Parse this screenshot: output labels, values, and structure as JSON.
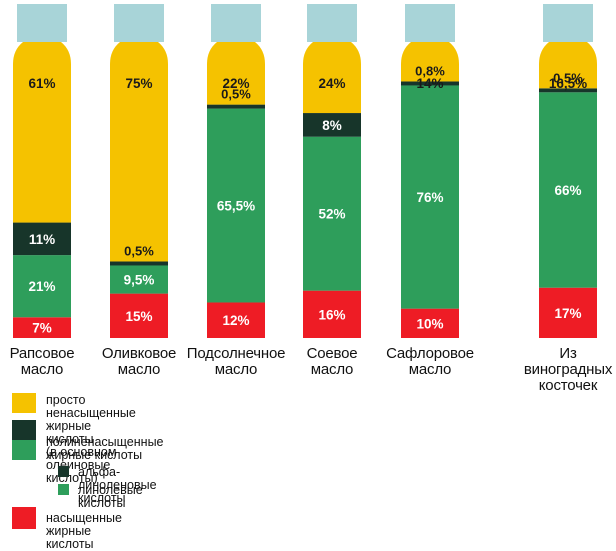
{
  "chart_data": {
    "type": "bar",
    "stacked": true,
    "orientation": "vertical",
    "categories": [
      "Рапсовое масло",
      "Оливковое масло",
      "Подсолнечное масло",
      "Соевое масло",
      "Сафлоровое масло",
      "Из виноградных косточек"
    ],
    "category_lines": [
      [
        "Рапсовое",
        "масло"
      ],
      [
        "Оливковое",
        "масло"
      ],
      [
        "Подсолнечное",
        "масло"
      ],
      [
        "Соевое",
        "масло"
      ],
      [
        "Сафлоровое",
        "масло"
      ],
      [
        "Из",
        "виноградных",
        "косточек"
      ]
    ],
    "series": [
      {
        "name": "насыщенные жирные кислоты",
        "color": "#ee1c25",
        "values": [
          7,
          15,
          12,
          16,
          10,
          17
        ],
        "labels": [
          "7%",
          "15%",
          "12%",
          "16%",
          "10%",
          "17%"
        ]
      },
      {
        "name": "линолевые кислоты",
        "color": "#2e9e5b",
        "values": [
          21,
          9.5,
          65.5,
          52,
          76,
          66
        ],
        "labels": [
          "21%",
          "9,5%",
          "65,5%",
          "52%",
          "76%",
          "66%"
        ]
      },
      {
        "name": "альфа- линоленовые кислоты",
        "color": "#17352a",
        "values": [
          11,
          0.5,
          0.5,
          8,
          0.8,
          0.5
        ],
        "labels": [
          "11%",
          "0,5%",
          "0,5%",
          "8%",
          "0,8%",
          "0,5%"
        ]
      },
      {
        "name": "просто ненасыщенные жирные кислоты (в основном олеиновые кислоты)",
        "color": "#f5c200",
        "values": [
          61,
          75,
          22,
          24,
          14,
          16.5
        ],
        "labels": [
          "61%",
          "75%",
          "22%",
          "24%",
          "14%",
          "16,5%"
        ]
      }
    ],
    "cap_color": "#a8d4d8",
    "legend": [
      {
        "color": "#f5c200",
        "lines": [
          "просто ненасыщенные жирные кислоты",
          "(в основном олеиновые кислоты)"
        ]
      },
      {
        "color": "#17352a",
        "second_color": "#2e9e5b",
        "lines": [
          "полиненасыщенные жирные кислоты"
        ]
      },
      {
        "color": "#17352a",
        "lines": [
          "альфа- линоленовые кислоты"
        ]
      },
      {
        "color": "#2e9e5b",
        "lines": [
          "линолевые кислоты"
        ]
      },
      {
        "color": "#ee1c25",
        "lines": [
          "насыщенные жирные кислоты"
        ]
      }
    ],
    "title": "",
    "xlabel": "",
    "ylabel": "",
    "ylim": [
      0,
      100
    ]
  }
}
